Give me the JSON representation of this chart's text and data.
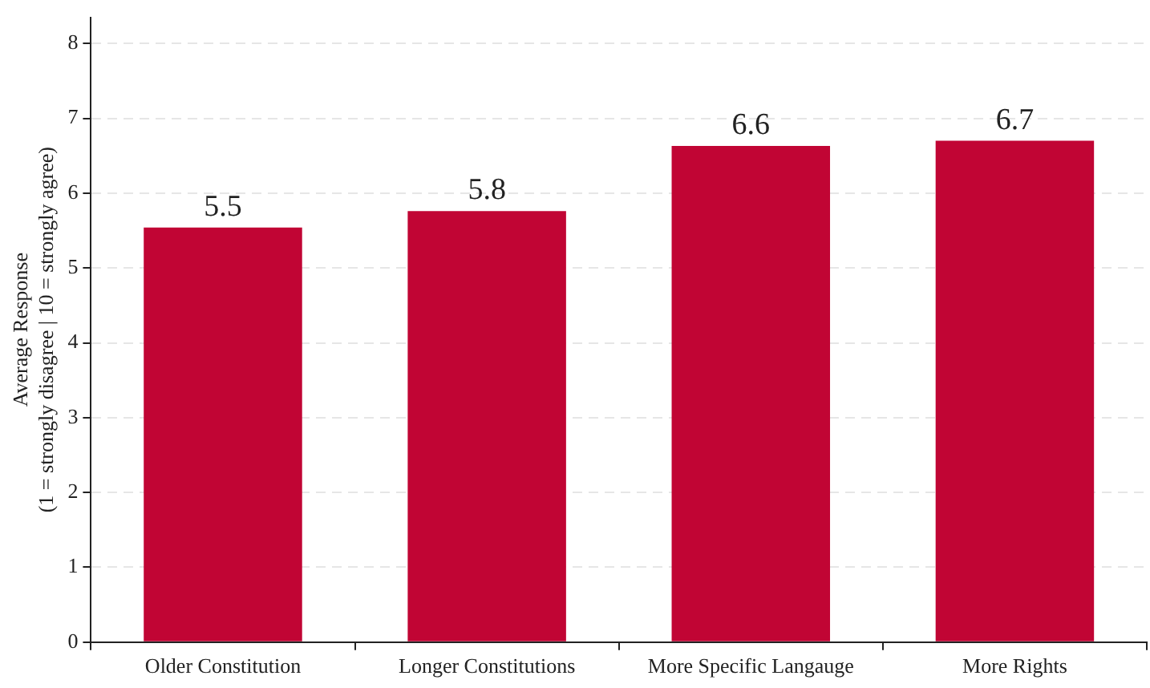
{
  "chart_data": {
    "type": "bar",
    "ylabel": "Average Response\n(1 = strongly disagree | 10 = strongly agree)",
    "categories": [
      "Older Constitution",
      "Longer Constitutions",
      "More Specific Langauge",
      "More Rights"
    ],
    "values": [
      5.54,
      5.76,
      6.63,
      6.7
    ],
    "value_labels": [
      "5.5",
      "5.8",
      "6.6",
      "6.7"
    ],
    "color": "#c10534",
    "ylim": [
      0,
      8.35
    ],
    "yticks": [
      0,
      1,
      2,
      3,
      4,
      5,
      6,
      7,
      8
    ],
    "grid": "y",
    "legend": false
  }
}
